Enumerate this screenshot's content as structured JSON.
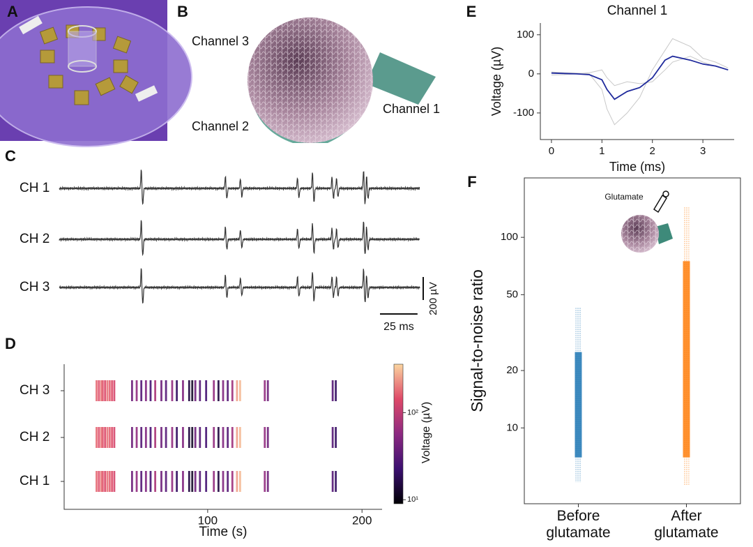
{
  "panel_labels": [
    "A",
    "B",
    "C",
    "D",
    "E",
    "F"
  ],
  "panel_b": {
    "labels": [
      "Channel 3",
      "Channel 2",
      "Channel 1"
    ]
  },
  "panel_c": {
    "channels": [
      "CH 1",
      "CH 2",
      "CH 3"
    ],
    "xlim": [
      0,
      240
    ],
    "spikes": [
      54,
      110,
      120,
      158,
      168,
      181,
      184,
      202,
      204
    ],
    "amplitudes": [
      320,
      200,
      160,
      180,
      260,
      190,
      170,
      300,
      200
    ],
    "scale_x": 25,
    "scale_x_label": "25 ms",
    "scale_y": 200,
    "scale_y_label": "200 µV"
  },
  "panel_d": {
    "type": "raster",
    "rows": [
      "CH 3",
      "CH 2",
      "CH 1"
    ],
    "xlabel": "Time (s)",
    "xlim": [
      7,
      213
    ],
    "xticks": [
      100,
      200
    ],
    "times": [
      28,
      29.5,
      31,
      32,
      33.5,
      35,
      36.5,
      38,
      39.5,
      51,
      54,
      57,
      60,
      63,
      66,
      70,
      73,
      77,
      80,
      84,
      88,
      90,
      92,
      95,
      99,
      104,
      107,
      110,
      113,
      116,
      119,
      121,
      137,
      139,
      181,
      183
    ],
    "voltages": [
      180,
      150,
      200,
      160,
      140,
      190,
      170,
      150,
      130,
      40,
      60,
      30,
      50,
      25,
      80,
      40,
      30,
      60,
      20,
      50,
      15,
      12,
      40,
      30,
      25,
      60,
      15,
      50,
      30,
      70,
      250,
      300,
      60,
      40,
      30,
      20
    ],
    "colorbar_label": "Voltage (µV)",
    "clim": [
      9,
      360
    ],
    "log": true,
    "cticks": [
      {
        "value": 10,
        "label": "10¹"
      },
      {
        "value": 100,
        "label": "10²"
      }
    ]
  },
  "panel_e": {
    "type": "line",
    "title": "Channel 1",
    "xlabel": "Time (ms)",
    "ylabel": "Voltage (µV)",
    "xlim": [
      -0.22,
      3.62
    ],
    "xticks": [
      0,
      1,
      2,
      3
    ],
    "ylim": [
      -168,
      130
    ],
    "yticks": [
      100,
      0,
      -100
    ],
    "x": [
      0,
      0.25,
      0.5,
      0.75,
      1,
      1.1,
      1.25,
      1.5,
      1.75,
      2,
      2.25,
      2.4,
      2.75,
      3,
      3.25,
      3.5
    ],
    "series": [
      {
        "color": "#c8c8c8",
        "values": [
          5,
          3,
          2,
          0,
          -40,
          -90,
          -130,
          -100,
          -60,
          10,
          60,
          90,
          70,
          40,
          30,
          15
        ]
      },
      {
        "color": "#c8c8c8",
        "values": [
          -3,
          -2,
          0,
          3,
          10,
          -10,
          -30,
          -20,
          -25,
          -20,
          10,
          30,
          45,
          30,
          20,
          10
        ]
      },
      {
        "color": "#1f2a9c",
        "values": [
          2,
          1,
          0,
          -2,
          -15,
          -40,
          -65,
          -45,
          -35,
          -10,
          35,
          45,
          35,
          25,
          20,
          10
        ]
      }
    ]
  },
  "panel_f": {
    "type": "strip",
    "ylabel": "Signal-to-noise ratio",
    "annotation": "Glutamate",
    "categories": [
      "Before glutamate",
      "After glutamate"
    ],
    "xlim": [
      -0.5,
      1.5
    ],
    "ylim": [
      4,
      205
    ],
    "log": true,
    "yticks": [
      10,
      20,
      50,
      100
    ],
    "series": [
      {
        "color": "#1f77b4",
        "range": [
          5.2,
          43
        ],
        "dense_range": [
          7,
          25
        ]
      },
      {
        "color": "#ff7f0e",
        "range": [
          5,
          145
        ],
        "dense_range": [
          7,
          75
        ]
      }
    ]
  }
}
